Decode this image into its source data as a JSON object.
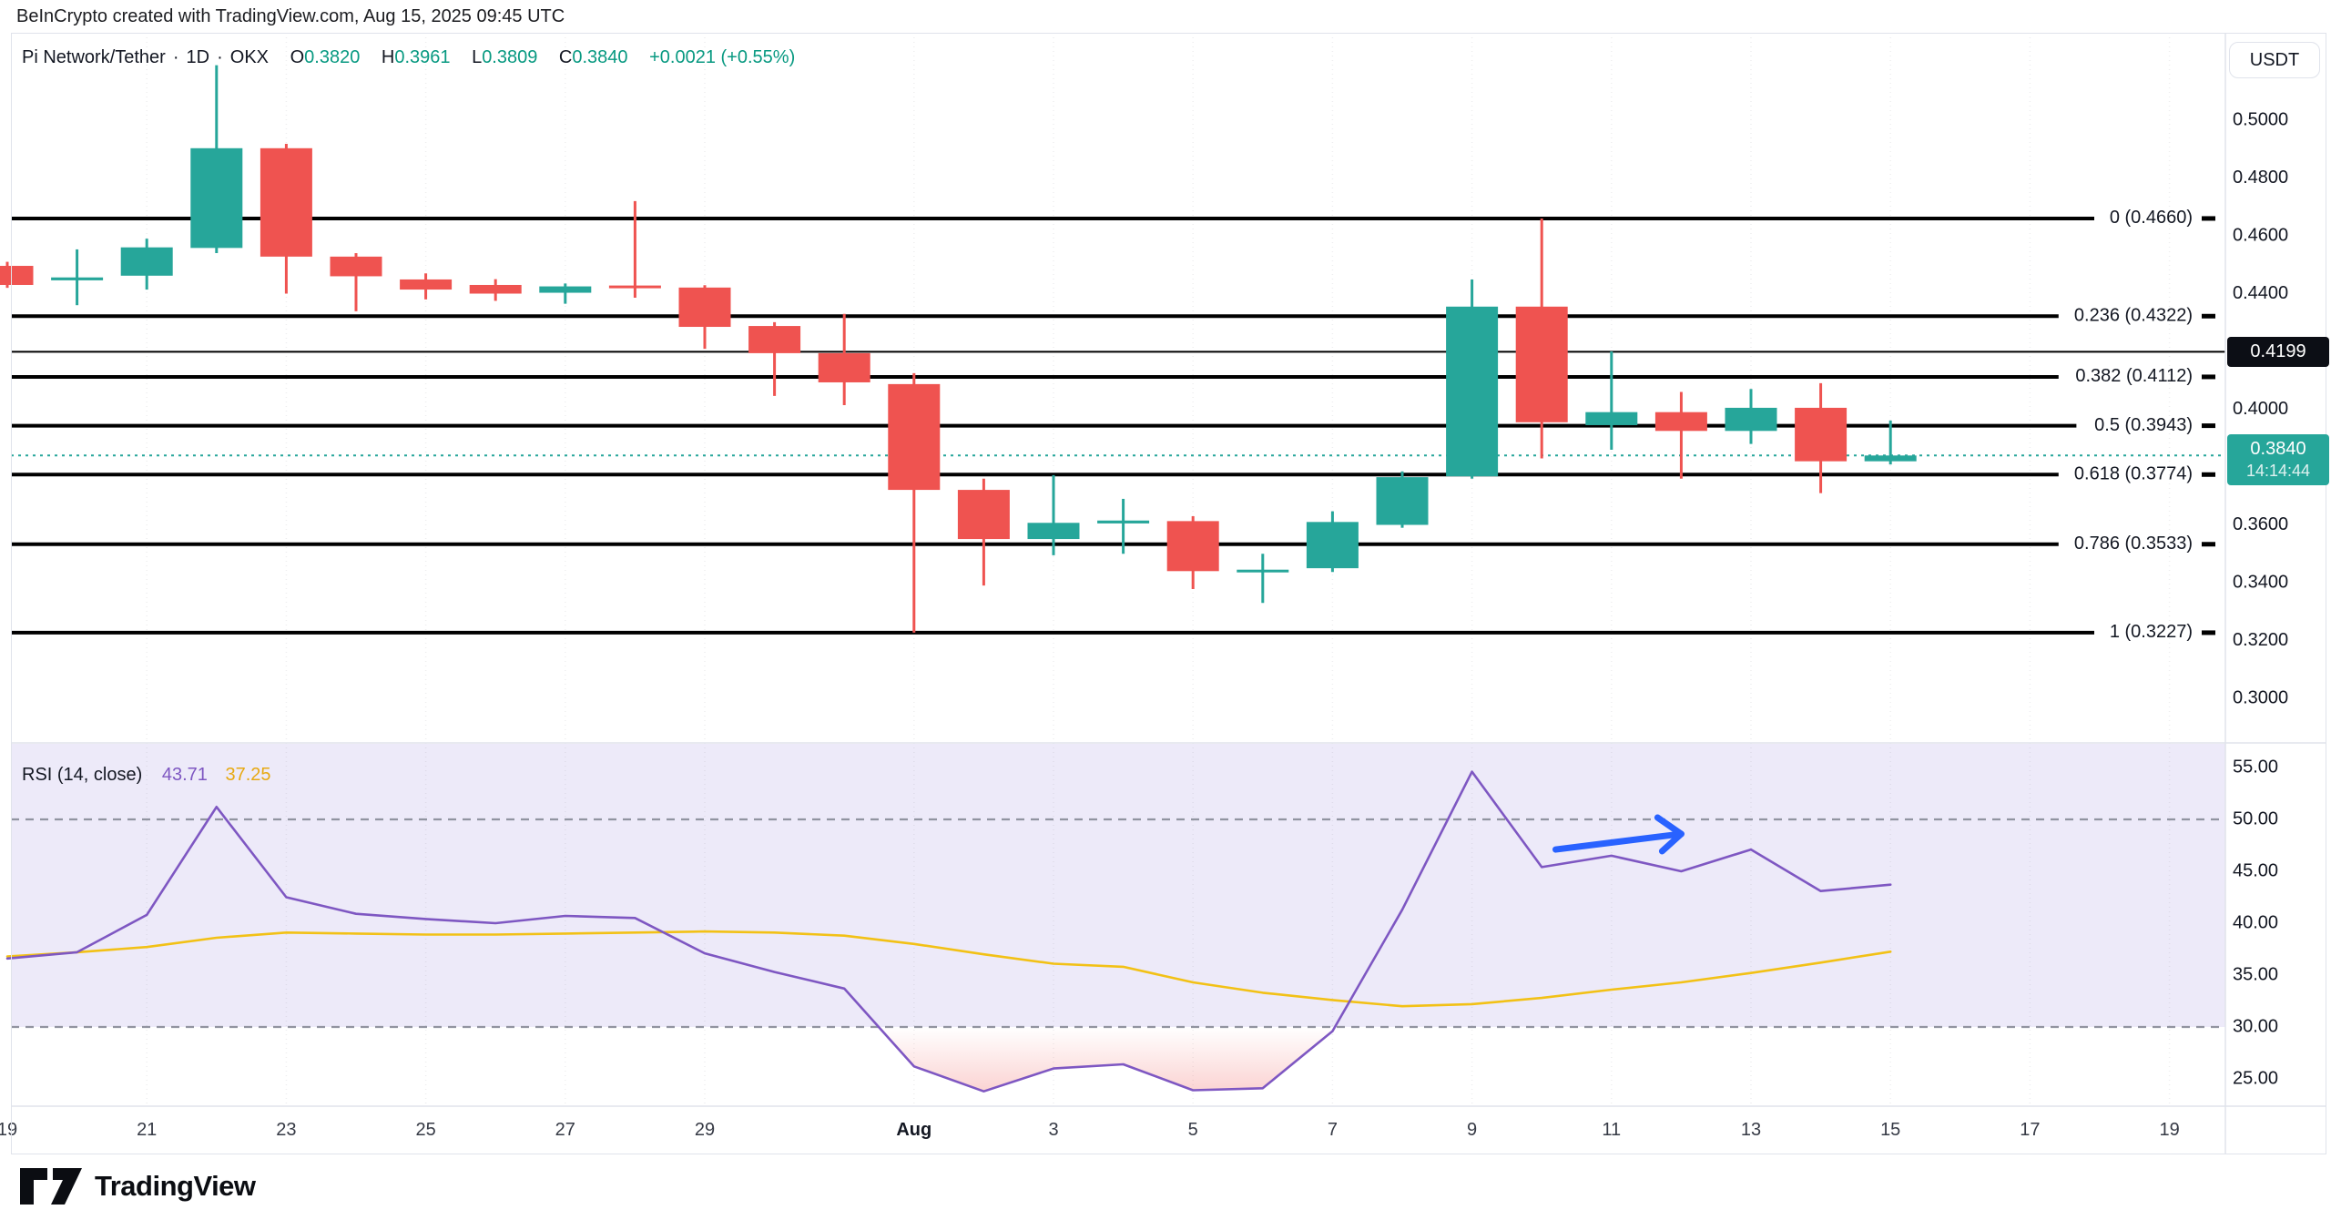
{
  "attribution": "BeInCrypto created with TradingView.com, Aug 15, 2025 09:45 UTC",
  "legend": {
    "symbol": "Pi Network/Tether",
    "separator": "·",
    "interval": "1D",
    "exchange": "OKX",
    "open_label": "O",
    "open": "0.3820",
    "high_label": "H",
    "high": "0.3961",
    "low_label": "L",
    "low": "0.3809",
    "close_label": "C",
    "close": "0.3840",
    "change": "+0.0021 (+0.55%)"
  },
  "price_scale": {
    "currency_button": "USDT",
    "ticks": [
      "0.5000",
      "0.4800",
      "0.4600",
      "0.4400",
      "0.4000",
      "0.3600",
      "0.3400",
      "0.3200",
      "0.3000"
    ],
    "line_badge": "0.4199",
    "price_badge": {
      "price": "0.3840",
      "countdown": "14:14:44"
    }
  },
  "time_scale": {
    "ticks": [
      {
        "label": "19",
        "day": 0
      },
      {
        "label": "21",
        "day": 2
      },
      {
        "label": "23",
        "day": 4
      },
      {
        "label": "25",
        "day": 6
      },
      {
        "label": "27",
        "day": 8
      },
      {
        "label": "29",
        "day": 10
      },
      {
        "label": "Aug",
        "day": 13,
        "bold": true
      },
      {
        "label": "3",
        "day": 15
      },
      {
        "label": "5",
        "day": 17
      },
      {
        "label": "7",
        "day": 19
      },
      {
        "label": "9",
        "day": 21
      },
      {
        "label": "11",
        "day": 23
      },
      {
        "label": "13",
        "day": 25
      },
      {
        "label": "15",
        "day": 27
      },
      {
        "label": "17",
        "day": 29
      },
      {
        "label": "19",
        "day": 31
      }
    ]
  },
  "rsi_panel": {
    "legend_label": "RSI (14, close)",
    "rsi_value": "43.71",
    "ma_value": "37.25",
    "axis_ticks": [
      "55.00",
      "50.00",
      "45.00",
      "40.00",
      "35.00",
      "30.00",
      "25.00"
    ],
    "band_levels": [
      50,
      30
    ]
  },
  "footer": {
    "logo_text": "TradingView"
  },
  "colors": {
    "candle_up": "#26a69a",
    "candle_down": "#ef5350",
    "legend_value": "#089981",
    "fib_line": "#000000",
    "horizontal_line": "#000000",
    "current_price_line": "#26a69a",
    "rsi_line": "#7e57c2",
    "rsi_ma_line": "#f2c116",
    "rsi_background": "#edeaf9",
    "oversold_fill": "#ef5350",
    "arrow": "#2962ff",
    "badge_black_bg": "#0c0e15",
    "badge_teal_bg": "#26a69a",
    "grid": "#e0e3eb",
    "band_dash": "#9194a0",
    "axis_text": "#131722"
  },
  "chart_data": {
    "type": "candlestick",
    "title": "Pi Network/Tether · 1D · OKX",
    "price_axis_range": [
      0.286,
      0.524
    ],
    "rsi_axis_range": [
      22.5,
      56.5
    ],
    "current_price": 0.384,
    "horizontal_line_price": 0.4199,
    "fib_retracement": [
      {
        "label": "0 (0.4660)",
        "price": 0.466
      },
      {
        "label": "0.236 (0.4322)",
        "price": 0.4322
      },
      {
        "label": "0.382 (0.4112)",
        "price": 0.4112
      },
      {
        "label": "0.5 (0.3943)",
        "price": 0.3943
      },
      {
        "label": "0.618 (0.3774)",
        "price": 0.3774
      },
      {
        "label": "0.786 (0.3533)",
        "price": 0.3533
      },
      {
        "label": "1 (0.3227)",
        "price": 0.3227
      }
    ],
    "candles": [
      {
        "date": "Jul 19",
        "o": 0.4496,
        "h": 0.451,
        "l": 0.442,
        "c": 0.443
      },
      {
        "date": "Jul 20",
        "o": 0.4446,
        "h": 0.4553,
        "l": 0.436,
        "c": 0.4456
      },
      {
        "date": "Jul 21",
        "o": 0.4462,
        "h": 0.459,
        "l": 0.4414,
        "c": 0.456
      },
      {
        "date": "Jul 22",
        "o": 0.4558,
        "h": 0.519,
        "l": 0.454,
        "c": 0.4903
      },
      {
        "date": "Jul 23",
        "o": 0.4903,
        "h": 0.4918,
        "l": 0.44,
        "c": 0.4528
      },
      {
        "date": "Jul 24",
        "o": 0.4528,
        "h": 0.454,
        "l": 0.4339,
        "c": 0.446
      },
      {
        "date": "Jul 25",
        "o": 0.4449,
        "h": 0.447,
        "l": 0.438,
        "c": 0.4414
      },
      {
        "date": "Jul 26",
        "o": 0.443,
        "h": 0.445,
        "l": 0.4375,
        "c": 0.44
      },
      {
        "date": "Jul 27",
        "o": 0.4403,
        "h": 0.4435,
        "l": 0.4365,
        "c": 0.4425
      },
      {
        "date": "Jul 28",
        "o": 0.4428,
        "h": 0.472,
        "l": 0.4386,
        "c": 0.442
      },
      {
        "date": "Jul 29",
        "o": 0.4421,
        "h": 0.4429,
        "l": 0.4209,
        "c": 0.4285
      },
      {
        "date": "Jul 30",
        "o": 0.4288,
        "h": 0.4301,
        "l": 0.4046,
        "c": 0.4194
      },
      {
        "date": "Jul 31",
        "o": 0.4194,
        "h": 0.433,
        "l": 0.4014,
        "c": 0.4093
      },
      {
        "date": "Aug 1",
        "o": 0.4087,
        "h": 0.4125,
        "l": 0.3227,
        "c": 0.3721
      },
      {
        "date": "Aug 2",
        "o": 0.3721,
        "h": 0.376,
        "l": 0.339,
        "c": 0.3551
      },
      {
        "date": "Aug 3",
        "o": 0.3551,
        "h": 0.3772,
        "l": 0.3495,
        "c": 0.3607
      },
      {
        "date": "Aug 4",
        "o": 0.3605,
        "h": 0.369,
        "l": 0.35,
        "c": 0.3615
      },
      {
        "date": "Aug 5",
        "o": 0.3613,
        "h": 0.363,
        "l": 0.3378,
        "c": 0.344
      },
      {
        "date": "Aug 6",
        "o": 0.344,
        "h": 0.35,
        "l": 0.333,
        "c": 0.3445
      },
      {
        "date": "Aug 7",
        "o": 0.345,
        "h": 0.3647,
        "l": 0.3437,
        "c": 0.361
      },
      {
        "date": "Aug 8",
        "o": 0.36,
        "h": 0.3785,
        "l": 0.359,
        "c": 0.3765
      },
      {
        "date": "Aug 9",
        "o": 0.3768,
        "h": 0.4449,
        "l": 0.376,
        "c": 0.4355
      },
      {
        "date": "Aug 10",
        "o": 0.4355,
        "h": 0.466,
        "l": 0.383,
        "c": 0.3955
      },
      {
        "date": "Aug 11",
        "o": 0.3945,
        "h": 0.42,
        "l": 0.386,
        "c": 0.399
      },
      {
        "date": "Aug 12",
        "o": 0.399,
        "h": 0.406,
        "l": 0.376,
        "c": 0.3925
      },
      {
        "date": "Aug 13",
        "o": 0.3925,
        "h": 0.407,
        "l": 0.388,
        "c": 0.4005
      },
      {
        "date": "Aug 14",
        "o": 0.4005,
        "h": 0.409,
        "l": 0.371,
        "c": 0.382
      },
      {
        "date": "Aug 15",
        "o": 0.382,
        "h": 0.3961,
        "l": 0.3809,
        "c": 0.384
      }
    ],
    "rsi": [
      36.6,
      37.2,
      40.8,
      51.2,
      42.5,
      40.9,
      40.4,
      40.0,
      40.7,
      40.5,
      37.1,
      35.3,
      33.7,
      26.2,
      23.8,
      26.0,
      26.4,
      23.9,
      24.1,
      29.6,
      41.3,
      54.6,
      45.4,
      46.5,
      45.0,
      47.1,
      43.1,
      43.71
    ],
    "rsi_ma": [
      36.8,
      37.2,
      37.7,
      38.6,
      39.1,
      39.0,
      38.9,
      38.9,
      39.0,
      39.1,
      39.2,
      39.1,
      38.8,
      38.0,
      37.0,
      36.1,
      35.8,
      34.3,
      33.3,
      32.6,
      32.0,
      32.2,
      32.8,
      33.6,
      34.3,
      35.2,
      36.2,
      37.25
    ],
    "rsi_arrow": {
      "from_day": 22.2,
      "from_rsi": 47.1,
      "to_day": 24.0,
      "to_rsi": 48.6
    }
  }
}
